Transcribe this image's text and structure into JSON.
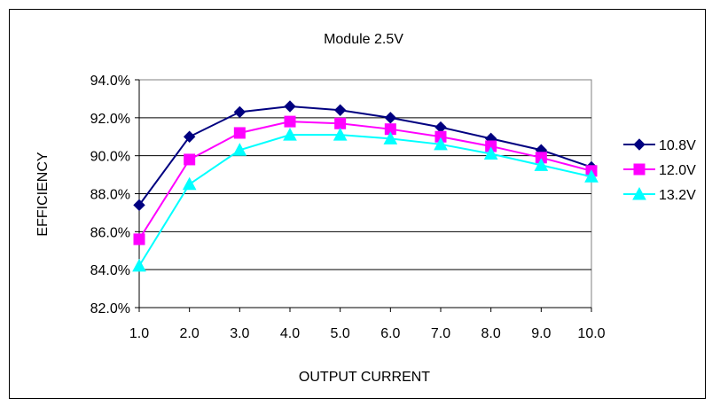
{
  "chart_data": {
    "type": "line",
    "title": "Module 2.5V",
    "xlabel": "OUTPUT CURRENT",
    "ylabel": "EFFICIENCY",
    "x": [
      1,
      2,
      3,
      4,
      5,
      6,
      7,
      8,
      9,
      10
    ],
    "x_tick_labels": [
      "1.0",
      "2.0",
      "3.0",
      "4.0",
      "5.0",
      "6.0",
      "7.0",
      "8.0",
      "9.0",
      "10.0"
    ],
    "ylim": [
      82.0,
      94.0
    ],
    "y_ticks": [
      82.0,
      84.0,
      86.0,
      88.0,
      90.0,
      92.0,
      94.0
    ],
    "y_tick_labels": [
      "82.0%",
      "84.0%",
      "86.0%",
      "88.0%",
      "90.0%",
      "92.0%",
      "94.0%"
    ],
    "grid": "horizontal",
    "legend_position": "right",
    "series": [
      {
        "name": "10.8V",
        "color": "#000080",
        "marker": "diamond",
        "values": [
          87.4,
          91.0,
          92.3,
          92.6,
          92.4,
          92.0,
          91.5,
          90.9,
          90.3,
          89.4
        ]
      },
      {
        "name": "12.0V",
        "color": "#FF00FF",
        "marker": "square",
        "values": [
          85.6,
          89.8,
          91.2,
          91.8,
          91.7,
          91.4,
          91.0,
          90.5,
          89.9,
          89.2
        ]
      },
      {
        "name": "13.2V",
        "color": "#00FFFF",
        "marker": "triangle",
        "values": [
          84.2,
          88.5,
          90.3,
          91.1,
          91.1,
          90.9,
          90.6,
          90.1,
          89.5,
          88.9
        ]
      }
    ]
  }
}
